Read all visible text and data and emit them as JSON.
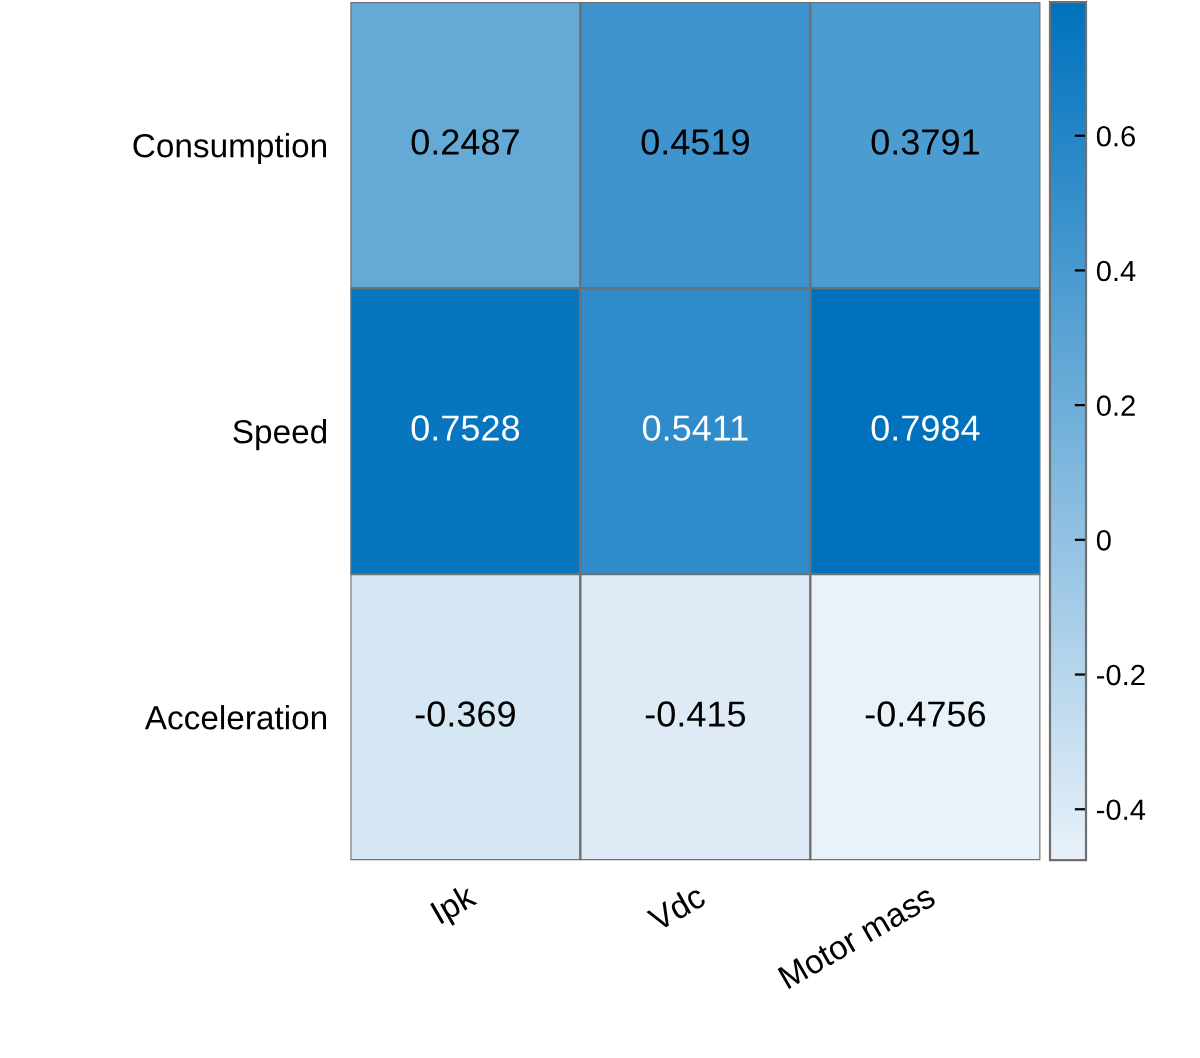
{
  "chart_data": {
    "type": "heatmap",
    "categories": [
      "Ipk",
      "Vdc",
      "Motor mass"
    ],
    "y_categories": [
      "Consumption",
      "Speed",
      "Acceleration"
    ],
    "cells": [
      [
        0.2487,
        0.4519,
        0.3791
      ],
      [
        0.7528,
        0.5411,
        0.7984
      ],
      [
        -0.369,
        -0.415,
        -0.4756
      ]
    ],
    "data_labels": true,
    "clim": [
      -0.4756,
      0.7984
    ],
    "cticks": [
      -0.4,
      -0.2,
      0,
      0.2,
      0.4,
      0.6
    ]
  }
}
